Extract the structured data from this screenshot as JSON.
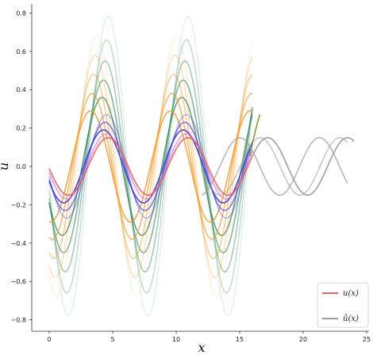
{
  "chart_data": {
    "type": "line",
    "xlabel": "x",
    "ylabel": "u",
    "xlim": [
      -1.5,
      25.5
    ],
    "ylim": [
      -0.83,
      0.83
    ],
    "x_ticks": [
      0,
      5,
      10,
      15,
      20,
      25
    ],
    "y_ticks": [
      -0.8,
      -0.6,
      -0.4,
      -0.2,
      0.0,
      0.2,
      0.4,
      0.6,
      0.8
    ],
    "y_tick_labels": [
      "−0.8",
      "−0.6",
      "−0.4",
      "−0.2",
      "0.0",
      "0.2",
      "0.4",
      "0.6",
      "0.8"
    ],
    "grid": false,
    "legend_position": "bottom-right",
    "series": [
      {
        "name": "u(x)",
        "label_tex": "u(x)",
        "color": "#e8615a",
        "role": "ground-truth",
        "x_range": [
          0,
          16
        ],
        "amplitude": 0.15,
        "wavenumber": 1.0
      },
      {
        "name": "û(x)",
        "label_tex": "û(x)",
        "color": "#9a9a9a",
        "role": "prediction",
        "x_range": [
          16,
          24
        ],
        "amplitude": 0.15,
        "wavenumber": 1.0
      }
    ],
    "families": [
      {
        "group": "green",
        "color": "#3c8f60",
        "x_range": [
          0,
          16
        ],
        "amplitudes": [
          0.78,
          0.66,
          0.55,
          0.45,
          0.36
        ],
        "wavenumber": 1.0,
        "alpha_range": [
          0.12,
          0.8
        ]
      },
      {
        "group": "orange",
        "color": "#f59a2a",
        "x_range": [
          0,
          16
        ],
        "amplitudes": [
          0.68,
          0.58,
          0.48,
          0.38,
          0.29
        ],
        "wavenumber": 1.0,
        "phase": 0.9,
        "alpha_range": [
          0.12,
          0.85
        ]
      },
      {
        "group": "blue",
        "color": "#3f3fd6",
        "x_range": [
          0,
          16
        ],
        "amplitudes": [
          0.32,
          0.27,
          0.23,
          0.19
        ],
        "wavenumber": 1.0,
        "alpha_range": [
          0.05,
          0.95
        ]
      },
      {
        "group": "violet",
        "color": "#d46ad8",
        "x_range": [
          0,
          16
        ],
        "amplitudes": [
          0.2,
          0.17
        ],
        "wavenumber": 1.0,
        "alpha_range": [
          0.1,
          0.6
        ]
      },
      {
        "group": "olive",
        "color": "#8c8c1f",
        "x_range": [
          15.8,
          16.6
        ],
        "amplitudes": [
          0.33
        ],
        "wavenumber": 1.0,
        "alpha_range": [
          0.9,
          0.9
        ]
      },
      {
        "group": "gray-repeat",
        "color": "#9a9a9a",
        "x_range": [
          12,
          23.5
        ],
        "amplitudes": [
          0.15,
          0.15
        ],
        "wavenumber": 1.0,
        "phases": [
          0.6,
          2.2
        ],
        "alpha_range": [
          0.55,
          0.7
        ]
      }
    ]
  },
  "legend": {
    "entries": [
      {
        "label": "u(x)",
        "color": "#e8615a"
      },
      {
        "label": "û(x)",
        "color": "#9a9a9a"
      }
    ]
  }
}
